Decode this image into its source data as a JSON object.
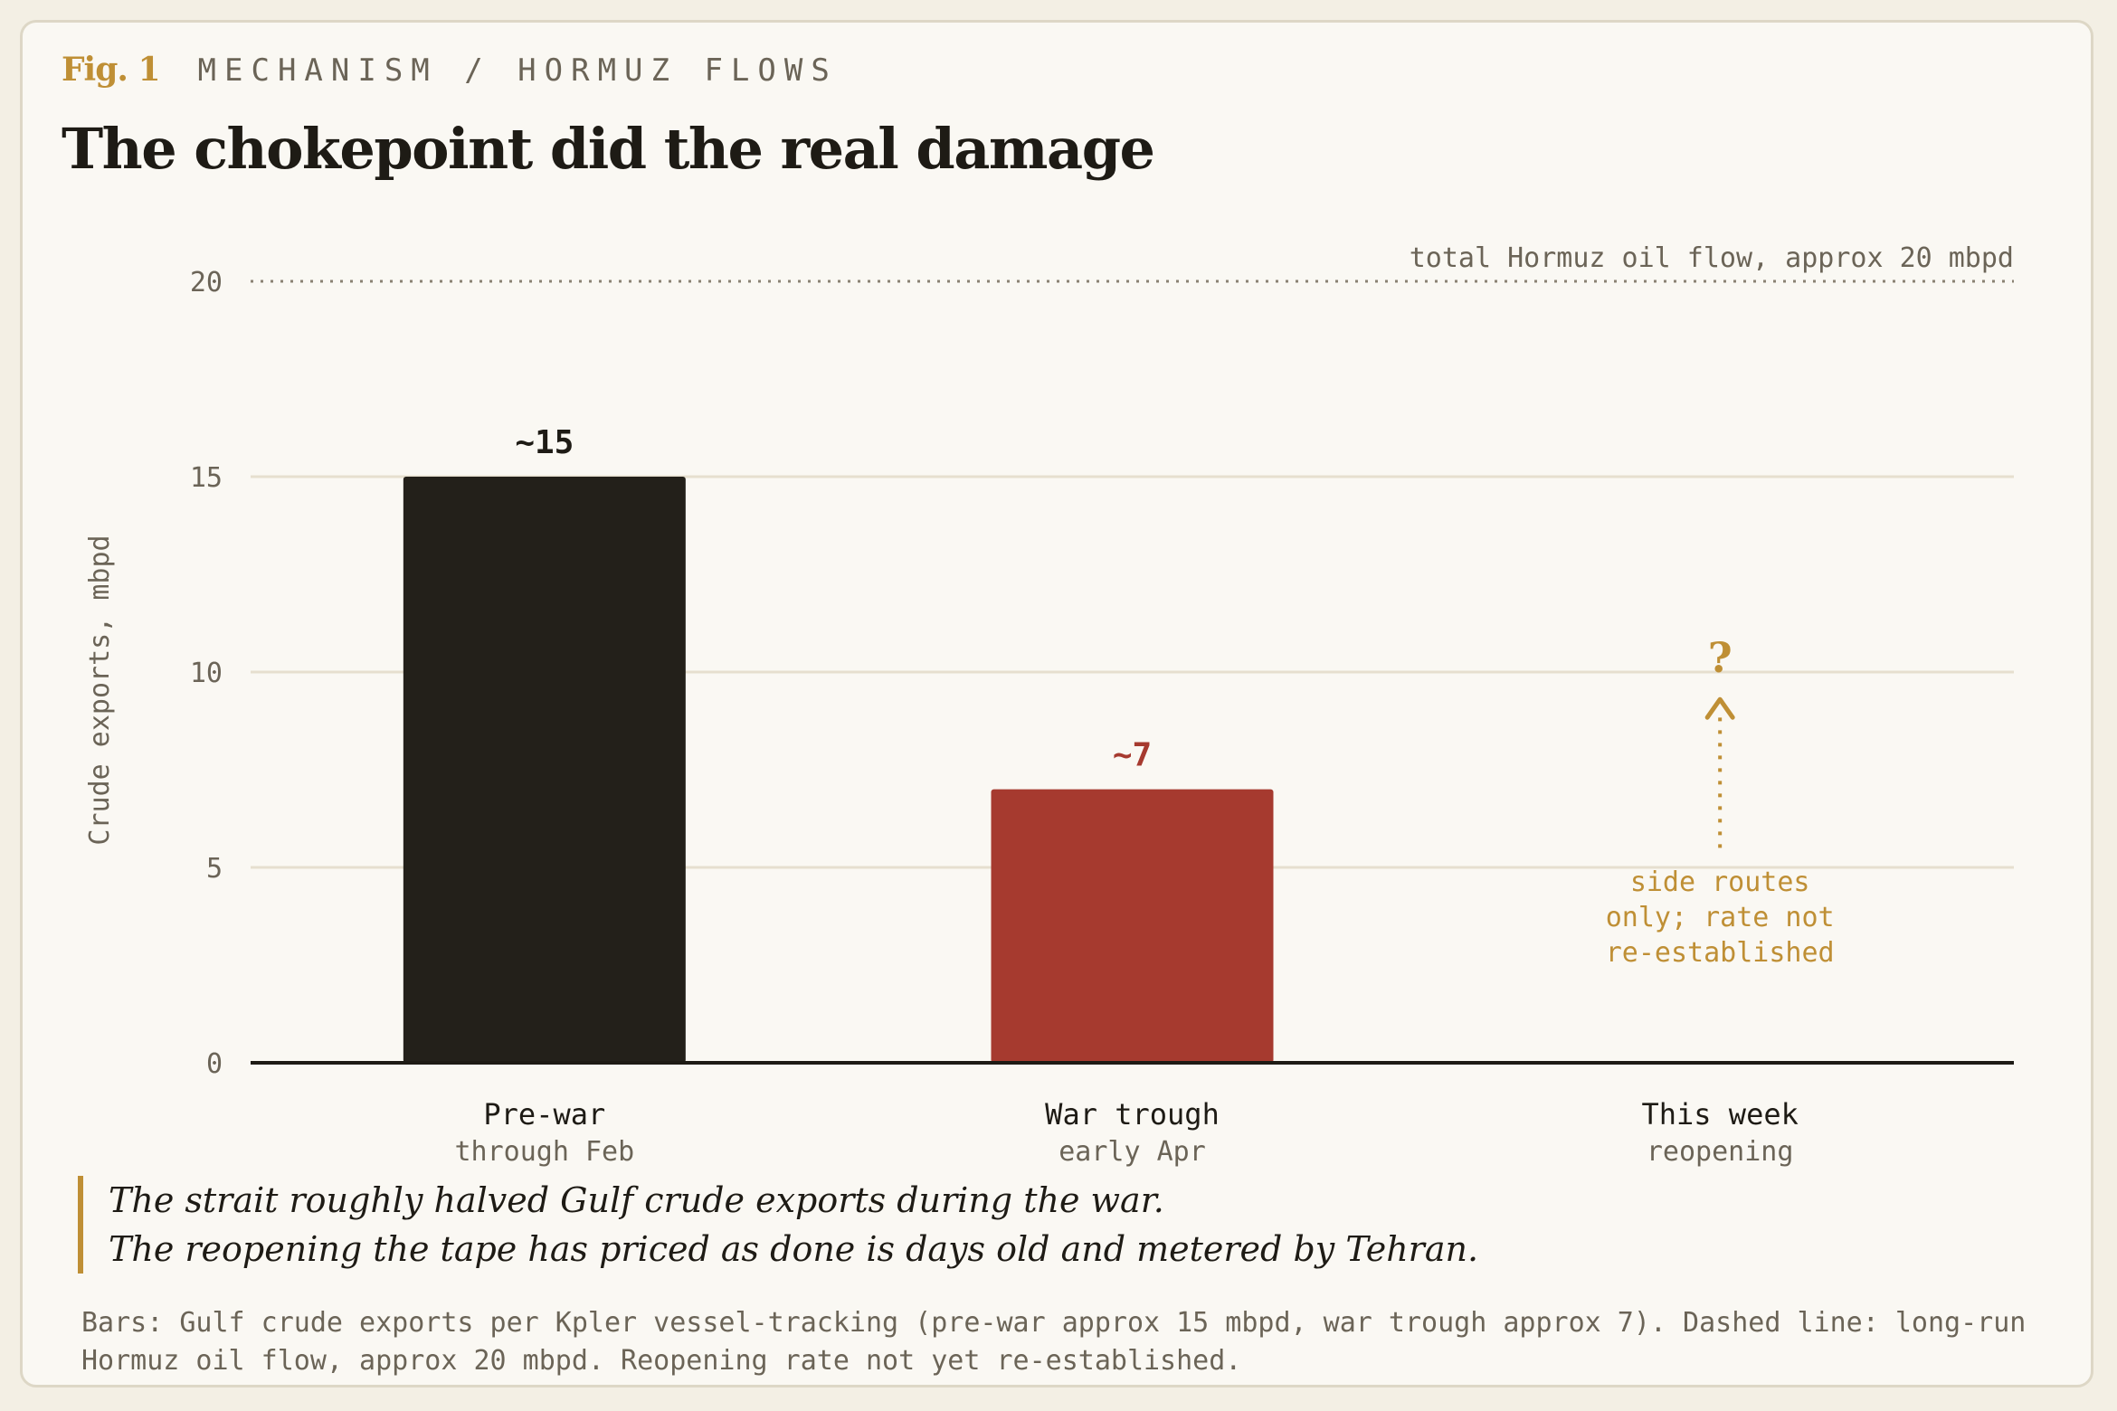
{
  "header": {
    "fig_label": "Fig. 1",
    "section": "MECHANISM / HORMUZ FLOWS",
    "title": "The chokepoint did the real damage"
  },
  "chart_data": {
    "type": "bar",
    "categories": [
      "Pre-war",
      "War trough",
      "This week"
    ],
    "category_sublabels": [
      "through Feb",
      "early Apr",
      "reopening"
    ],
    "values": [
      15,
      7,
      null
    ],
    "value_labels": [
      "~15",
      "~7",
      "?"
    ],
    "bar_colors": [
      "#23201a",
      "#a63a2f",
      null
    ],
    "ylabel": "Crude exports, mbpd",
    "ylim": [
      0,
      20
    ],
    "yticks": [
      0,
      5,
      10,
      15,
      20
    ],
    "grid": true,
    "reference_line": {
      "value": 20,
      "label": "total Hormuz oil flow, approx 20 mbpd",
      "style": "dotted"
    },
    "annotation": {
      "category": "This week",
      "from_value": 5.5,
      "to_value": 9.3,
      "lines": [
        "side routes",
        "only; rate not",
        "re-established"
      ],
      "color": "#bf8f35"
    }
  },
  "quote": {
    "line1": "The strait roughly halved Gulf crude exports during the war.",
    "line2": "The reopening the tape has priced as done is days old and metered by Tehran."
  },
  "source": {
    "text": "Bars: Gulf crude exports per Kpler vessel-tracking (pre-war approx 15 mbpd, war trough approx 7). Dashed line: long-run Hormuz oil flow, approx 20 mbpd. Reopening rate not yet re-established."
  },
  "colors": {
    "accent": "#bf8f35",
    "ink": "#1e1b15",
    "muted": "#6b6457",
    "war_red": "#a63a2f",
    "grid": "#e6dfcf"
  }
}
